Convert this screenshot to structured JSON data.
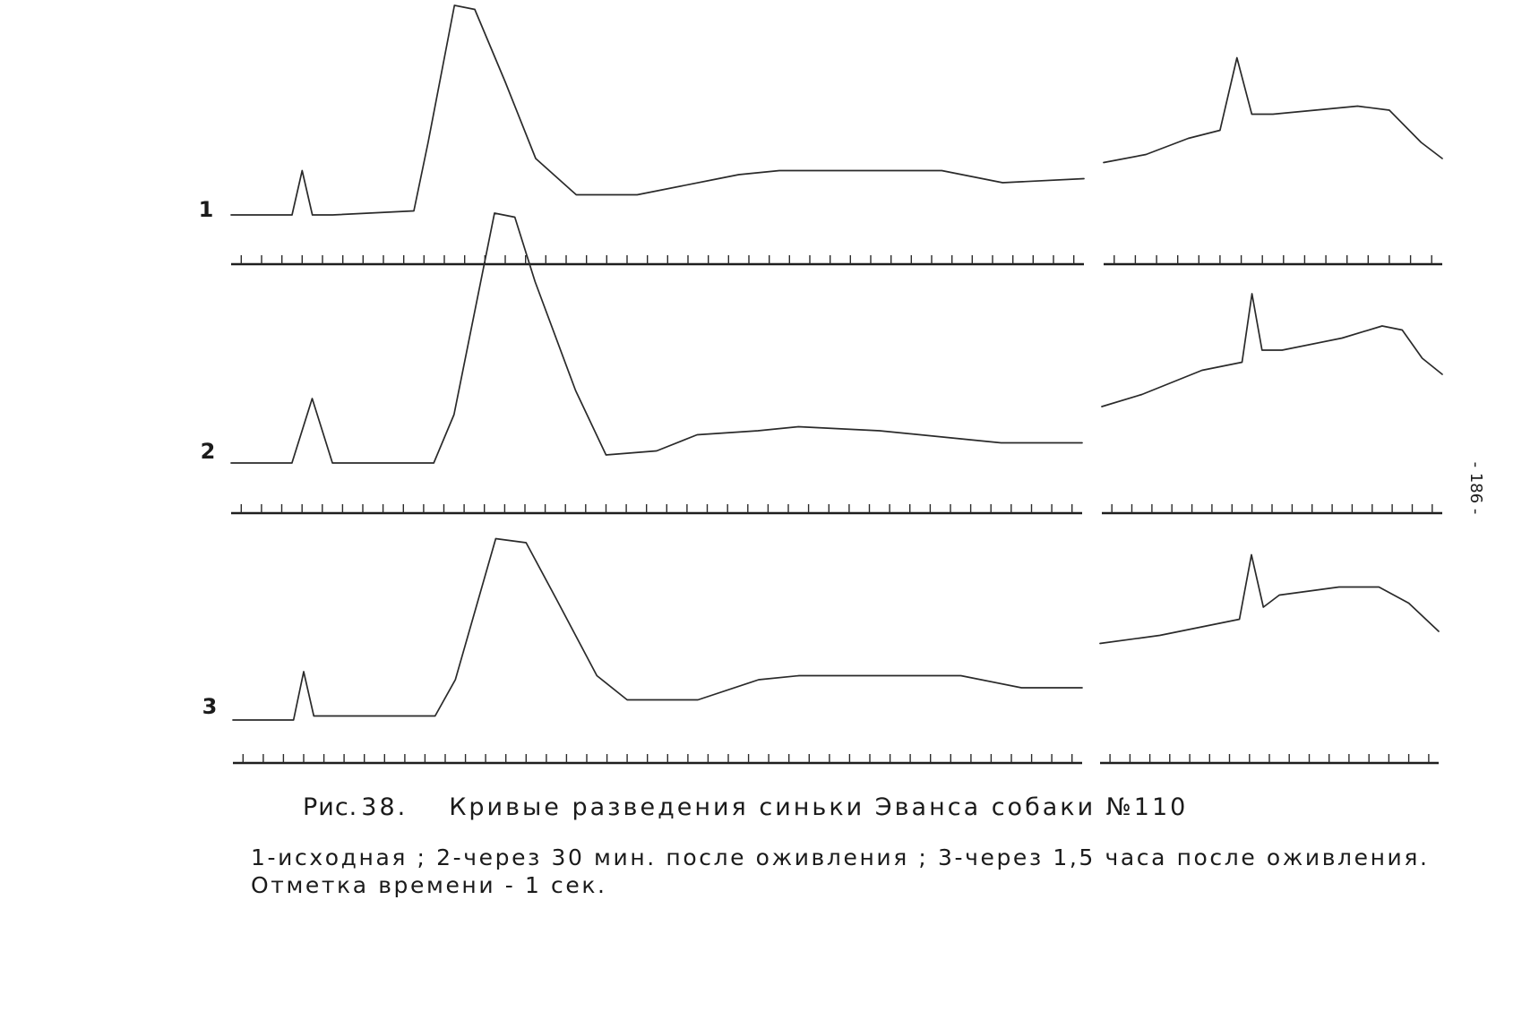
{
  "page_number": "- 186 -",
  "caption": {
    "figure_label": "Рис.",
    "figure_number": "38.",
    "title": "Кривые разведения синьки Эванса собаки №110",
    "legend": "1-исходная ; 2-через 30 мин. после оживления ; 3-через 1,5 часа после оживления. Отметка времени - 1 сек."
  },
  "chart_data": {
    "type": "line",
    "title": "Кривые разведения синьки Эванса собаки №110",
    "xlabel": "",
    "ylabel": "",
    "time_marker": "1 сек",
    "grid": false,
    "legend": "none",
    "series": [
      {
        "name": "1",
        "segments": [
          {
            "x": [
              0,
              2,
              3,
              3.5,
              4,
              5,
              9,
              9.7,
              11,
              12,
              13.5,
              15,
              17,
              19,
              20,
              24,
              25,
              27,
              30,
              35,
              38,
              42
            ],
            "y": [
              0,
              0,
              0,
              0.11,
              0,
              0,
              0.01,
              0.18,
              0.52,
              0.51,
              0.33,
              0.14,
              0.05,
              0.05,
              0.05,
              0.09,
              0.1,
              0.11,
              0.11,
              0.11,
              0.08,
              0.09
            ]
          },
          {
            "x": [
              0,
              2,
              4,
              5.5,
              6.3,
              7,
              8,
              10,
              12,
              13.5,
              15,
              16
            ],
            "y": [
              0.13,
              0.15,
              0.19,
              0.21,
              0.39,
              0.25,
              0.25,
              0.26,
              0.27,
              0.26,
              0.18,
              0.14
            ]
          }
        ]
      },
      {
        "name": "2",
        "segments": [
          {
            "x": [
              0,
              3,
              4,
              5,
              10,
              11,
              13,
              14,
              15,
              17,
              18.5,
              21,
              23,
              26,
              28,
              32,
              36,
              38,
              42
            ],
            "y": [
              0,
              0,
              0.16,
              0,
              0,
              0.12,
              0.62,
              0.61,
              0.45,
              0.18,
              0.02,
              0.03,
              0.07,
              0.08,
              0.09,
              0.08,
              0.06,
              0.05,
              0.05
            ]
          },
          {
            "x": [
              0,
              2,
              5,
              7,
              7.5,
              8,
              9,
              12,
              14,
              15,
              16,
              17
            ],
            "y": [
              0.14,
              0.17,
              0.23,
              0.25,
              0.42,
              0.28,
              0.28,
              0.31,
              0.34,
              0.33,
              0.26,
              0.22
            ]
          }
        ]
      },
      {
        "name": "3",
        "segments": [
          {
            "x": [
              0,
              3,
              3.5,
              4,
              10,
              11,
              13,
              14.5,
              16,
              18,
              19.5,
              21,
              23,
              26,
              28,
              32,
              36,
              39,
              42
            ],
            "y": [
              0,
              0,
              0.12,
              0.01,
              0.01,
              0.1,
              0.45,
              0.44,
              0.3,
              0.11,
              0.05,
              0.05,
              0.05,
              0.1,
              0.11,
              0.11,
              0.11,
              0.08,
              0.08
            ]
          },
          {
            "x": [
              0,
              3,
              6,
              7,
              7.6,
              8.2,
              9,
              12,
              14,
              15.5,
              17
            ],
            "y": [
              0.19,
              0.21,
              0.24,
              0.25,
              0.41,
              0.28,
              0.31,
              0.33,
              0.33,
              0.29,
              0.22
            ]
          }
        ]
      }
    ]
  }
}
